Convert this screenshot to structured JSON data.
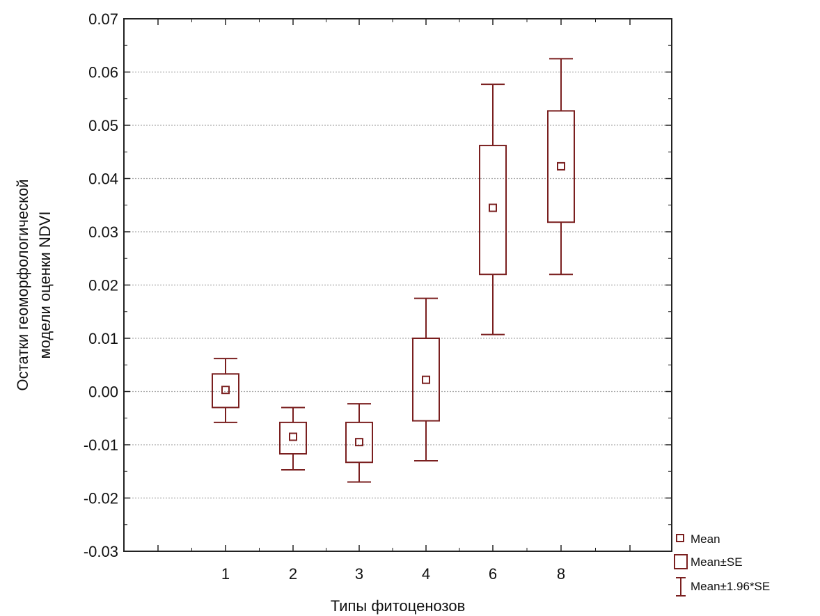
{
  "chart_data": {
    "type": "box",
    "title": "",
    "xlabel": "Типы фитоценозов",
    "ylabel_lines": [
      "Остатки геоморфологической",
      "модели оценки NDVI"
    ],
    "ylim": [
      -0.03,
      0.07
    ],
    "yticks": [
      "0.07",
      "0.06",
      "0.05",
      "0.04",
      "0.03",
      "0.02",
      "0.01",
      "0.00",
      "-0.01",
      "-0.02",
      "-0.03"
    ],
    "ytick_values": [
      0.07,
      0.06,
      0.05,
      0.04,
      0.03,
      0.02,
      0.01,
      0.0,
      -0.01,
      -0.02,
      -0.03
    ],
    "categories": [
      "1",
      "2",
      "3",
      "4",
      "6",
      "8"
    ],
    "series": [
      {
        "category": "1",
        "mean": 0.0003,
        "se_low": -0.003,
        "se_high": 0.0033,
        "ci_low": -0.0058,
        "ci_high": 0.0062
      },
      {
        "category": "2",
        "mean": -0.0085,
        "se_low": -0.0117,
        "se_high": -0.0058,
        "ci_low": -0.0147,
        "ci_high": -0.003
      },
      {
        "category": "3",
        "mean": -0.0095,
        "se_low": -0.0133,
        "se_high": -0.0058,
        "ci_low": -0.017,
        "ci_high": -0.0023
      },
      {
        "category": "4",
        "mean": 0.0022,
        "se_low": -0.0055,
        "se_high": 0.01,
        "ci_low": -0.013,
        "ci_high": 0.0175
      },
      {
        "category": "6",
        "mean": 0.0345,
        "se_low": 0.022,
        "se_high": 0.0462,
        "ci_low": 0.0107,
        "ci_high": 0.0577
      },
      {
        "category": "8",
        "mean": 0.0423,
        "se_low": 0.0318,
        "se_high": 0.0527,
        "ci_low": 0.022,
        "ci_high": 0.0625
      }
    ],
    "grid": {
      "horizontal": true,
      "vertical": false
    },
    "legend_position": "bottom-right",
    "legend": [
      "Mean",
      "Mean±SE",
      "Mean±1.96*SE"
    ],
    "colors": {
      "series": "#7a1f1f",
      "axis": "#222222",
      "grid": "#aaaaaa"
    }
  }
}
